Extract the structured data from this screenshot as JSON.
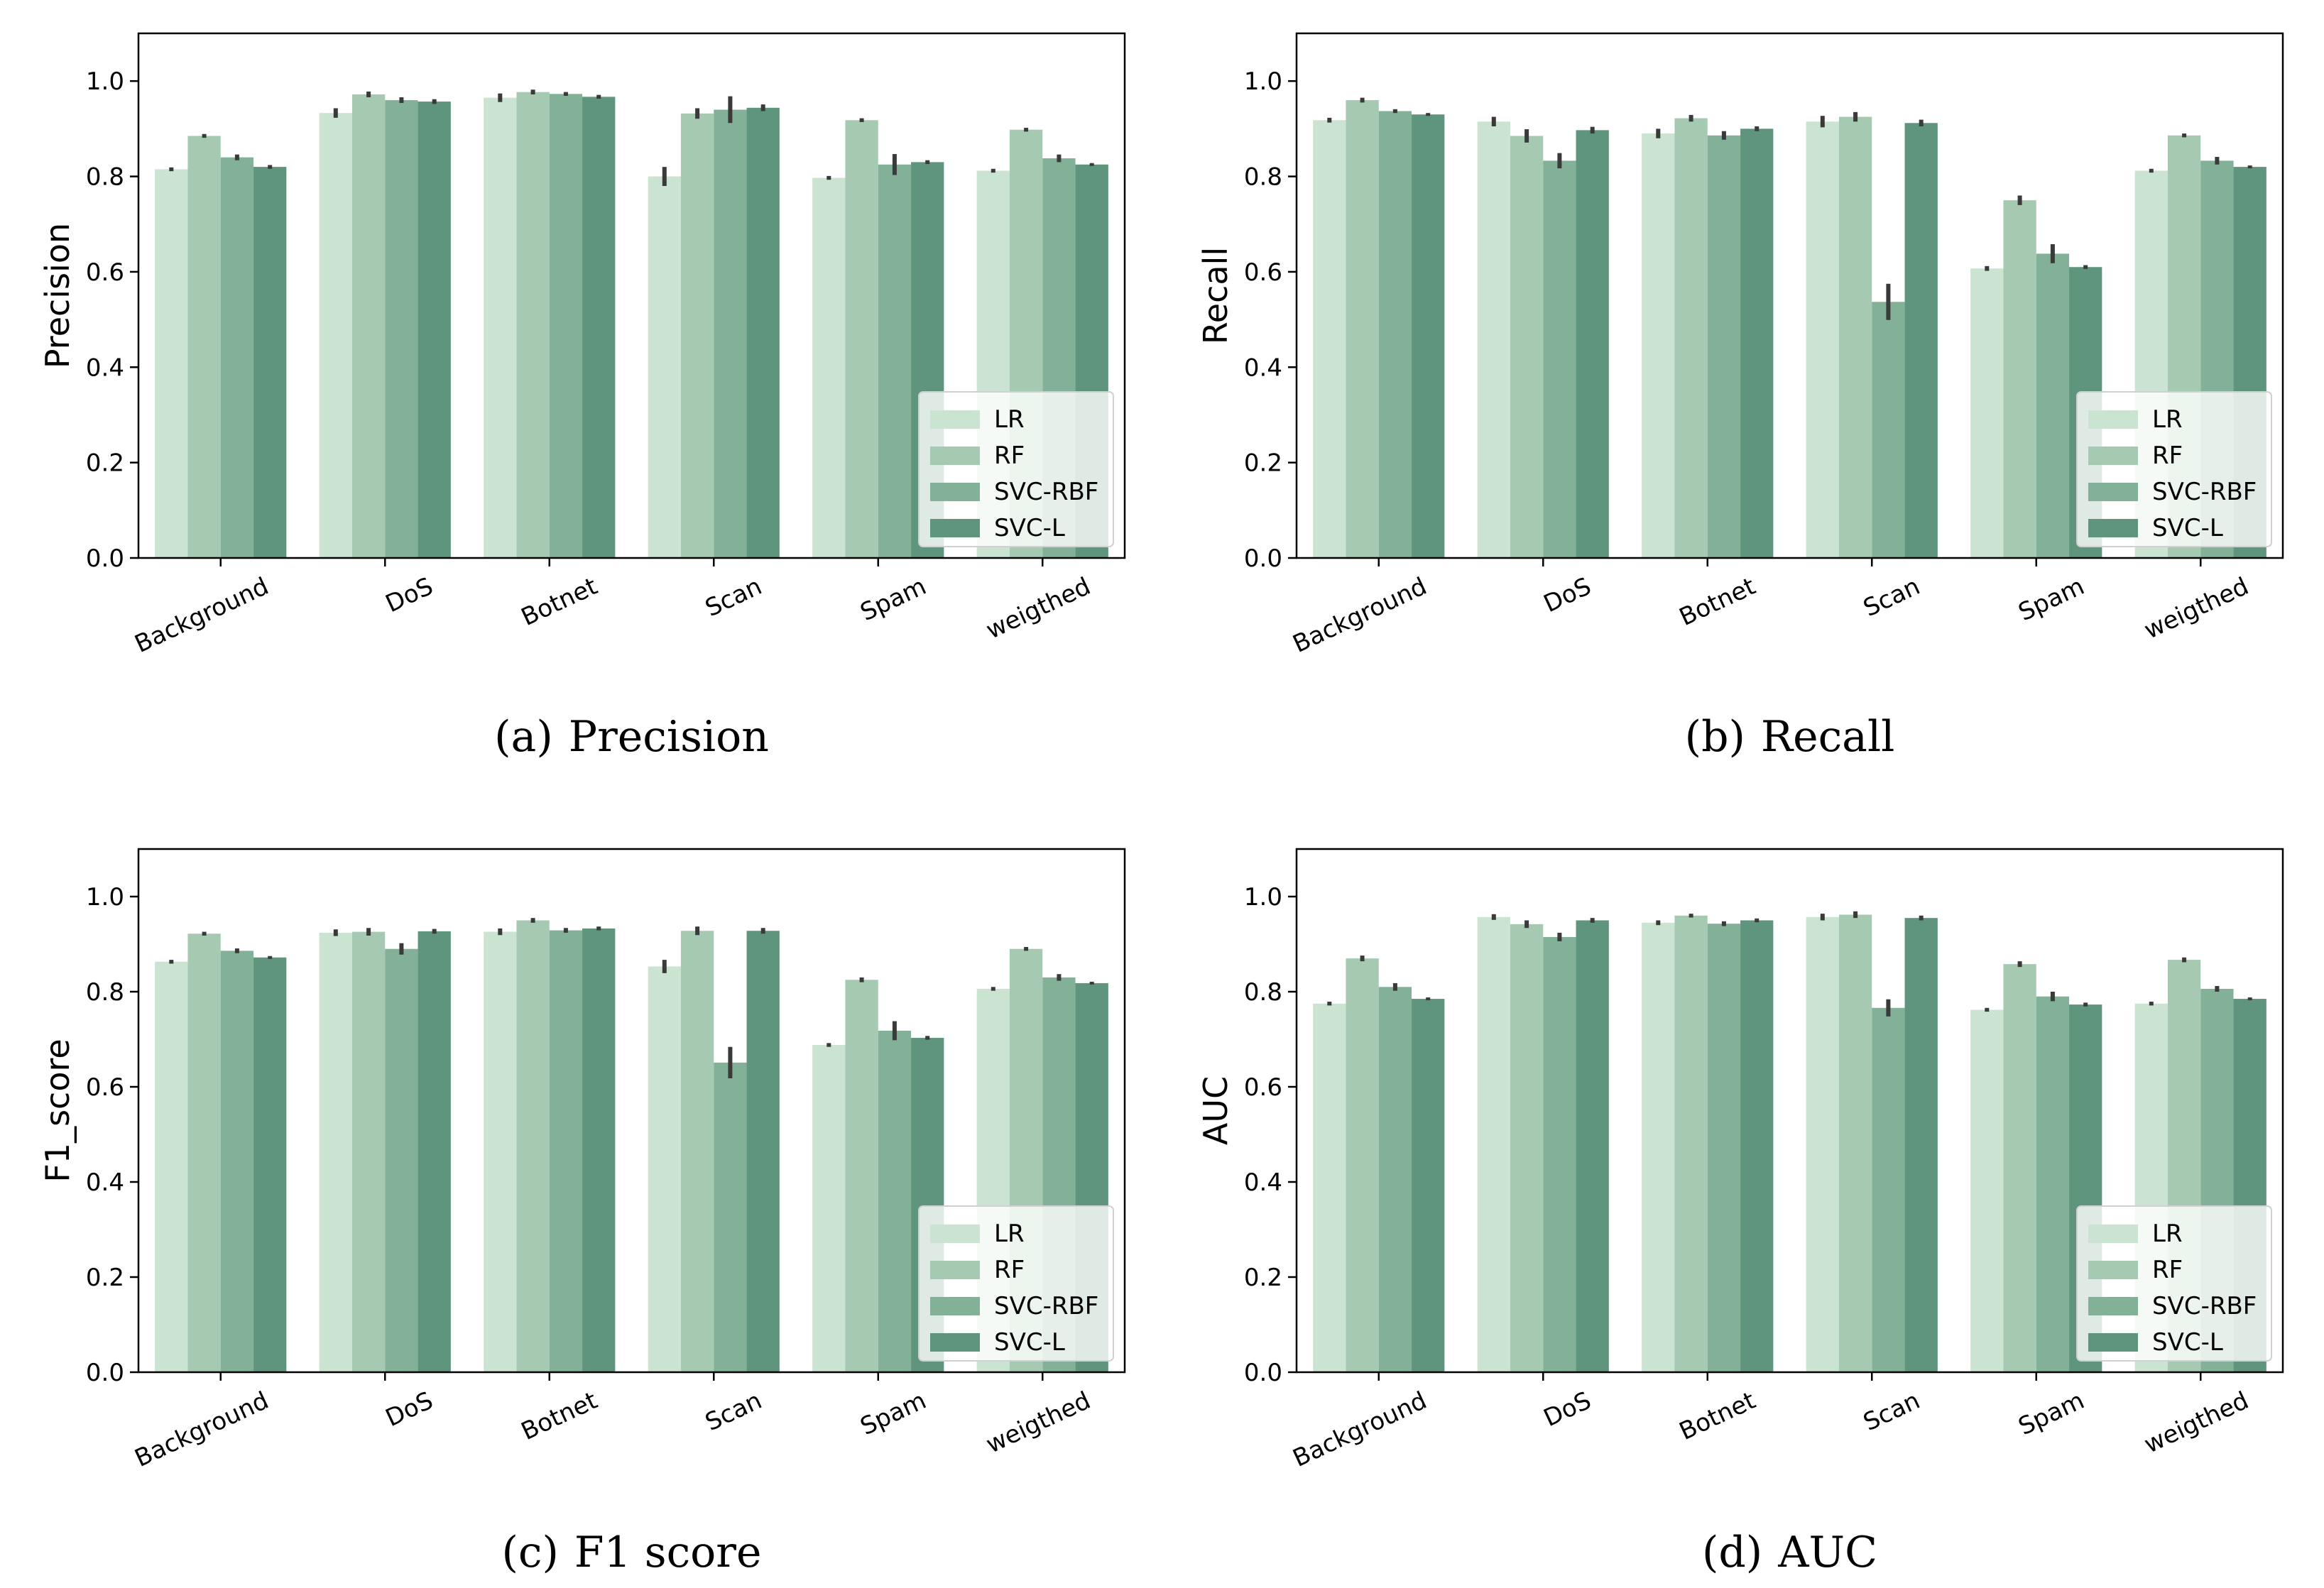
{
  "colors": {
    "LR": "#cbe3d1",
    "RF": "#a5cab1",
    "SVC-RBF": "#82b197",
    "SVC-L": "#5f957c",
    "error": "#3a3a3a"
  },
  "chart_data": [
    {
      "type": "bar",
      "caption_tag": "(a)",
      "caption_title": "Precision",
      "ylabel": "Precision",
      "ylim": [
        0,
        1.1
      ],
      "yticks": [
        "0.0",
        "0.2",
        "0.4",
        "0.6",
        "0.8",
        "1.0"
      ],
      "categories": [
        "Background",
        "DoS",
        "Botnet",
        "Scan",
        "Spam",
        "weigthed"
      ],
      "legend": [
        "LR",
        "RF",
        "SVC-RBF",
        "SVC-L"
      ],
      "series": [
        {
          "name": "LR",
          "values": [
            0.815,
            0.933,
            0.965,
            0.8,
            0.797,
            0.812
          ],
          "errors": [
            0.004,
            0.01,
            0.009,
            0.02,
            0.004,
            0.004
          ]
        },
        {
          "name": "RF",
          "values": [
            0.885,
            0.972,
            0.977,
            0.932,
            0.918,
            0.898
          ],
          "errors": [
            0.004,
            0.006,
            0.005,
            0.011,
            0.004,
            0.004
          ]
        },
        {
          "name": "SVC-RBF",
          "values": [
            0.84,
            0.96,
            0.973,
            0.94,
            0.825,
            0.838
          ],
          "errors": [
            0.006,
            0.006,
            0.004,
            0.028,
            0.022,
            0.008
          ]
        },
        {
          "name": "SVC-L",
          "values": [
            0.82,
            0.957,
            0.967,
            0.944,
            0.83,
            0.825
          ],
          "errors": [
            0.004,
            0.005,
            0.004,
            0.007,
            0.004,
            0.003
          ]
        }
      ]
    },
    {
      "type": "bar",
      "caption_tag": "(b)",
      "caption_title": "Recall",
      "ylabel": "Recall",
      "ylim": [
        0,
        1.1
      ],
      "yticks": [
        "0.0",
        "0.2",
        "0.4",
        "0.6",
        "0.8",
        "1.0"
      ],
      "categories": [
        "Background",
        "DoS",
        "Botnet",
        "Scan",
        "Spam",
        "weigthed"
      ],
      "legend": [
        "LR",
        "RF",
        "SVC-RBF",
        "SVC-L"
      ],
      "series": [
        {
          "name": "LR",
          "values": [
            0.918,
            0.915,
            0.89,
            0.915,
            0.607,
            0.812
          ],
          "errors": [
            0.005,
            0.01,
            0.01,
            0.012,
            0.005,
            0.004
          ]
        },
        {
          "name": "RF",
          "values": [
            0.96,
            0.885,
            0.922,
            0.925,
            0.75,
            0.886
          ],
          "errors": [
            0.005,
            0.014,
            0.007,
            0.01,
            0.01,
            0.004
          ]
        },
        {
          "name": "SVC-RBF",
          "values": [
            0.937,
            0.833,
            0.886,
            0.537,
            0.638,
            0.833
          ],
          "errors": [
            0.004,
            0.016,
            0.009,
            0.038,
            0.02,
            0.008
          ]
        },
        {
          "name": "SVC-L",
          "values": [
            0.93,
            0.897,
            0.9,
            0.912,
            0.61,
            0.82
          ],
          "errors": [
            0.003,
            0.007,
            0.005,
            0.007,
            0.004,
            0.003
          ]
        }
      ]
    },
    {
      "type": "bar",
      "caption_tag": "(c)",
      "caption_title": "F1 score",
      "ylabel": "F1_score",
      "ylim": [
        0,
        1.1
      ],
      "yticks": [
        "0.0",
        "0.2",
        "0.4",
        "0.6",
        "0.8",
        "1.0"
      ],
      "categories": [
        "Background",
        "DoS",
        "Botnet",
        "Scan",
        "Spam",
        "weigthed"
      ],
      "legend": [
        "LR",
        "RF",
        "SVC-RBF",
        "SVC-L"
      ],
      "series": [
        {
          "name": "LR",
          "values": [
            0.863,
            0.924,
            0.926,
            0.853,
            0.688,
            0.806
          ],
          "errors": [
            0.004,
            0.007,
            0.007,
            0.014,
            0.004,
            0.004
          ]
        },
        {
          "name": "RF",
          "values": [
            0.922,
            0.926,
            0.95,
            0.928,
            0.825,
            0.89
          ],
          "errors": [
            0.004,
            0.008,
            0.005,
            0.009,
            0.005,
            0.004
          ]
        },
        {
          "name": "SVC-RBF",
          "values": [
            0.886,
            0.89,
            0.929,
            0.651,
            0.718,
            0.83
          ],
          "errors": [
            0.005,
            0.012,
            0.005,
            0.033,
            0.02,
            0.007
          ]
        },
        {
          "name": "SVC-L",
          "values": [
            0.872,
            0.927,
            0.933,
            0.928,
            0.703,
            0.818
          ],
          "errors": [
            0.003,
            0.005,
            0.004,
            0.006,
            0.004,
            0.003
          ]
        }
      ]
    },
    {
      "type": "bar",
      "caption_tag": "(d)",
      "caption_title": "AUC",
      "ylabel": "AUC",
      "ylim": [
        0,
        1.1
      ],
      "yticks": [
        "0.0",
        "0.2",
        "0.4",
        "0.6",
        "0.8",
        "1.0"
      ],
      "categories": [
        "Background",
        "DoS",
        "Botnet",
        "Scan",
        "Spam",
        "weigthed"
      ],
      "legend": [
        "LR",
        "RF",
        "SVC-RBF",
        "SVC-L"
      ],
      "series": [
        {
          "name": "LR",
          "values": [
            0.775,
            0.957,
            0.945,
            0.957,
            0.762,
            0.775
          ],
          "errors": [
            0.004,
            0.006,
            0.005,
            0.007,
            0.004,
            0.004
          ]
        },
        {
          "name": "RF",
          "values": [
            0.87,
            0.942,
            0.96,
            0.962,
            0.858,
            0.867
          ],
          "errors": [
            0.006,
            0.008,
            0.004,
            0.007,
            0.006,
            0.005
          ]
        },
        {
          "name": "SVC-RBF",
          "values": [
            0.81,
            0.915,
            0.943,
            0.766,
            0.79,
            0.806
          ],
          "errors": [
            0.008,
            0.009,
            0.005,
            0.018,
            0.01,
            0.006
          ]
        },
        {
          "name": "SVC-L",
          "values": [
            0.785,
            0.95,
            0.95,
            0.955,
            0.773,
            0.785
          ],
          "errors": [
            0.003,
            0.005,
            0.004,
            0.005,
            0.004,
            0.003
          ]
        }
      ]
    }
  ]
}
